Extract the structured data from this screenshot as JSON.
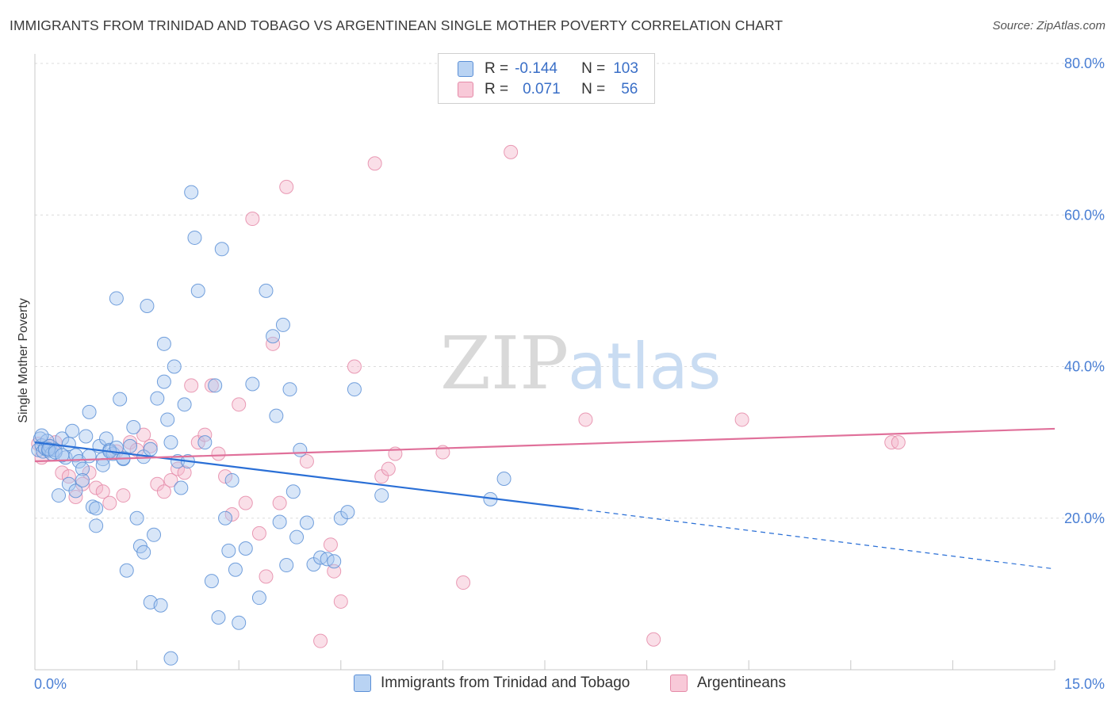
{
  "header": {
    "title": "IMMIGRANTS FROM TRINIDAD AND TOBAGO VS ARGENTINEAN SINGLE MOTHER POVERTY CORRELATION CHART",
    "source": "Source: ZipAtlas.com"
  },
  "watermark": {
    "part1": "ZIP",
    "part2": "atlas"
  },
  "legend": {
    "rows": [
      {
        "r_label": "R =",
        "r_value": "-0.144",
        "n_label": "N =",
        "n_value": "103"
      },
      {
        "r_label": "R =",
        "r_value": "0.071",
        "n_label": "N =",
        "n_value": "56"
      }
    ]
  },
  "bottom_legend": {
    "series1": "Immigrants from Trinidad and Tobago",
    "series2": "Argentineans"
  },
  "colors": {
    "blue_fill": "#a8c8f0",
    "blue_stroke": "#5b8fd6",
    "blue_line": "#2a6fd6",
    "pink_fill": "#f5b8cc",
    "pink_stroke": "#e58aa8",
    "pink_line": "#e0709a",
    "tick_text": "#4a7fd4",
    "grid": "#dcdcdc"
  },
  "chart_data": {
    "type": "scatter",
    "title": "IMMIGRANTS FROM TRINIDAD AND TOBAGO VS ARGENTINEAN SINGLE MOTHER POVERTY CORRELATION CHART",
    "xlabel": "",
    "ylabel": "Single Mother Poverty",
    "xlim": [
      0,
      15
    ],
    "ylim": [
      0,
      80
    ],
    "x_ticks": [
      "0.0%",
      "15.0%"
    ],
    "y_ticks": [
      {
        "value": 20,
        "label": "20.0%"
      },
      {
        "value": 40,
        "label": "40.0%"
      },
      {
        "value": 60,
        "label": "60.0%"
      },
      {
        "value": 80,
        "label": "80.0%"
      }
    ],
    "grid": true,
    "legend_position": "top-center",
    "series": [
      {
        "name": "Immigrants from Trinidad and Tobago",
        "color": "#a8c8f0",
        "trend": {
          "x0": 0,
          "y0": 30.0,
          "x1": 8.0,
          "y1": 21.2,
          "dash_to_x": 15,
          "dash_to_y": 13.3
        },
        "points": [
          [
            0.05,
            29.0
          ],
          [
            0.08,
            30.5
          ],
          [
            0.1,
            29.6
          ],
          [
            0.12,
            28.8
          ],
          [
            0.15,
            29.2
          ],
          [
            0.18,
            30.2
          ],
          [
            0.2,
            28.9
          ],
          [
            0.22,
            29.5
          ],
          [
            0.25,
            28.5
          ],
          [
            0.3,
            29.0
          ],
          [
            0.35,
            23.0
          ],
          [
            0.4,
            30.5
          ],
          [
            0.45,
            28.0
          ],
          [
            0.5,
            29.8
          ],
          [
            0.55,
            31.5
          ],
          [
            0.6,
            28.3
          ],
          [
            0.65,
            27.5
          ],
          [
            0.7,
            26.5
          ],
          [
            0.75,
            30.8
          ],
          [
            0.8,
            28.2
          ],
          [
            0.85,
            21.5
          ],
          [
            0.9,
            21.3
          ],
          [
            0.95,
            29.5
          ],
          [
            1.0,
            27.8
          ],
          [
            1.05,
            30.5
          ],
          [
            1.1,
            29.0
          ],
          [
            1.15,
            28.5
          ],
          [
            1.2,
            49.0
          ],
          [
            1.25,
            35.7
          ],
          [
            1.3,
            27.8
          ],
          [
            1.35,
            13.1
          ],
          [
            1.4,
            29.5
          ],
          [
            1.45,
            32.0
          ],
          [
            1.5,
            20.0
          ],
          [
            1.55,
            16.3
          ],
          [
            1.6,
            15.5
          ],
          [
            1.65,
            48.0
          ],
          [
            1.7,
            8.9
          ],
          [
            1.75,
            17.8
          ],
          [
            1.8,
            35.8
          ],
          [
            1.85,
            8.5
          ],
          [
            1.9,
            38.0
          ],
          [
            1.95,
            33.0
          ],
          [
            2.0,
            30.0
          ],
          [
            2.1,
            27.5
          ],
          [
            2.2,
            35.0
          ],
          [
            2.3,
            63.0
          ],
          [
            2.35,
            57.0
          ],
          [
            2.4,
            50.0
          ],
          [
            2.5,
            30.0
          ],
          [
            2.6,
            11.7
          ],
          [
            2.65,
            37.5
          ],
          [
            2.7,
            6.9
          ],
          [
            2.75,
            55.5
          ],
          [
            2.8,
            20.0
          ],
          [
            2.85,
            15.7
          ],
          [
            2.9,
            25.0
          ],
          [
            2.95,
            13.2
          ],
          [
            3.0,
            6.2
          ],
          [
            3.1,
            16.0
          ],
          [
            3.2,
            37.7
          ],
          [
            3.3,
            9.5
          ],
          [
            3.4,
            50.0
          ],
          [
            3.5,
            44.0
          ],
          [
            3.6,
            19.5
          ],
          [
            3.65,
            45.5
          ],
          [
            3.7,
            13.8
          ],
          [
            3.8,
            23.5
          ],
          [
            3.9,
            29.0
          ],
          [
            4.0,
            19.4
          ],
          [
            4.1,
            13.9
          ],
          [
            4.2,
            14.8
          ],
          [
            4.3,
            14.6
          ],
          [
            4.4,
            14.3
          ],
          [
            4.5,
            20.0
          ],
          [
            4.6,
            20.8
          ],
          [
            4.7,
            37.0
          ],
          [
            5.1,
            23.0
          ],
          [
            6.7,
            22.5
          ],
          [
            6.9,
            25.2
          ],
          [
            0.1,
            30.9
          ],
          [
            0.2,
            29.1
          ],
          [
            0.3,
            28.7
          ],
          [
            0.4,
            28.3
          ],
          [
            0.5,
            24.5
          ],
          [
            0.6,
            23.6
          ],
          [
            0.7,
            25.0
          ],
          [
            0.8,
            34.0
          ],
          [
            0.9,
            19.0
          ],
          [
            1.0,
            27.0
          ],
          [
            1.1,
            28.8
          ],
          [
            1.2,
            29.3
          ],
          [
            1.3,
            27.9
          ],
          [
            1.6,
            28.1
          ],
          [
            1.7,
            29.1
          ],
          [
            1.9,
            43.0
          ],
          [
            2.0,
            1.5
          ],
          [
            2.05,
            40.0
          ],
          [
            2.15,
            24.0
          ],
          [
            2.25,
            27.5
          ],
          [
            3.55,
            33.5
          ],
          [
            3.75,
            37.0
          ],
          [
            3.85,
            17.5
          ]
        ]
      },
      {
        "name": "Argentineans",
        "color": "#f5b8cc",
        "trend": {
          "x0": 0,
          "y0": 27.5,
          "x1": 15,
          "y1": 31.8
        },
        "points": [
          [
            0.05,
            29.8
          ],
          [
            0.1,
            28.0
          ],
          [
            0.2,
            29.5
          ],
          [
            0.3,
            30.0
          ],
          [
            0.4,
            26.0
          ],
          [
            0.5,
            25.5
          ],
          [
            0.6,
            22.8
          ],
          [
            0.7,
            24.5
          ],
          [
            0.8,
            26.0
          ],
          [
            0.9,
            24.0
          ],
          [
            1.0,
            23.5
          ],
          [
            1.1,
            22.0
          ],
          [
            1.2,
            28.8
          ],
          [
            1.3,
            23.0
          ],
          [
            1.4,
            30.0
          ],
          [
            1.5,
            29.0
          ],
          [
            1.6,
            31.0
          ],
          [
            1.7,
            29.5
          ],
          [
            1.8,
            24.5
          ],
          [
            1.9,
            23.5
          ],
          [
            2.0,
            25.0
          ],
          [
            2.1,
            26.5
          ],
          [
            2.2,
            26.0
          ],
          [
            2.3,
            37.5
          ],
          [
            2.4,
            30.0
          ],
          [
            2.5,
            31.0
          ],
          [
            2.6,
            37.5
          ],
          [
            2.7,
            28.5
          ],
          [
            2.8,
            25.5
          ],
          [
            2.9,
            20.5
          ],
          [
            3.0,
            35.0
          ],
          [
            3.1,
            22.0
          ],
          [
            3.2,
            59.5
          ],
          [
            3.3,
            18.0
          ],
          [
            3.4,
            12.3
          ],
          [
            3.5,
            43.0
          ],
          [
            3.6,
            22.0
          ],
          [
            3.7,
            63.7
          ],
          [
            4.0,
            27.5
          ],
          [
            4.2,
            3.8
          ],
          [
            4.35,
            16.5
          ],
          [
            4.4,
            13.0
          ],
          [
            4.5,
            9.0
          ],
          [
            4.7,
            40.0
          ],
          [
            5.0,
            66.8
          ],
          [
            5.1,
            25.5
          ],
          [
            5.2,
            26.5
          ],
          [
            5.3,
            28.5
          ],
          [
            6.0,
            28.7
          ],
          [
            6.3,
            11.5
          ],
          [
            7.0,
            68.3
          ],
          [
            8.1,
            33.0
          ],
          [
            9.1,
            4.0
          ],
          [
            10.4,
            33.0
          ],
          [
            12.6,
            30.0
          ],
          [
            12.7,
            30.0
          ]
        ]
      }
    ]
  }
}
